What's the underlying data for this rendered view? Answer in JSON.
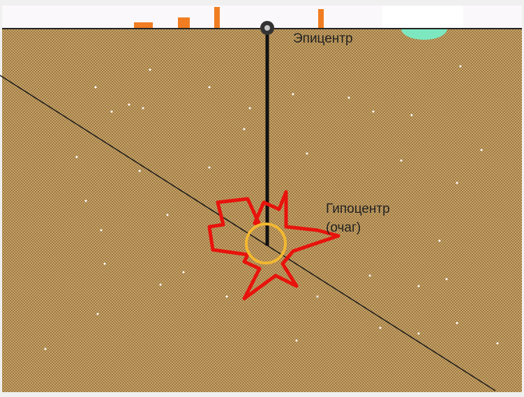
{
  "labels": {
    "epicenter": "Эпицентр",
    "hypocenter_line1": "Гипоцентр",
    "hypocenter_line2": "(очаг)"
  }
}
